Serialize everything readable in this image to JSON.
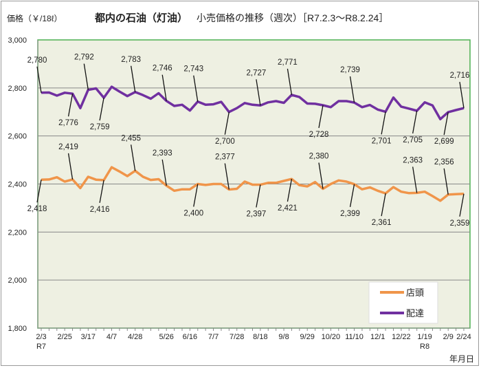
{
  "chart_data": {
    "type": "line",
    "title_bold": "都内の石油（灯油）",
    "title_rest": "小売価格の推移（週次）［R7.2.3～R8.2.24］",
    "ylabel": "価格（￥/18ℓ）",
    "xlabel": "年月日",
    "ylim": [
      1800,
      3000
    ],
    "yticks": [
      "1,800",
      "2,000",
      "2,200",
      "2,400",
      "2,600",
      "2,800",
      "3,000"
    ],
    "grid": true,
    "legend_position": "bottom-right",
    "x": [
      "2/3",
      "2/10",
      "2/17",
      "2/25",
      "3/3",
      "3/10",
      "3/17",
      "3/24",
      "3/31",
      "4/7",
      "4/14",
      "4/21",
      "4/28",
      "5/7",
      "5/12",
      "5/19",
      "5/26",
      "6/2",
      "6/9",
      "6/16",
      "6/23",
      "6/30",
      "7/7",
      "7/14",
      "7/22",
      "7/28",
      "8/4",
      "8/12",
      "8/18",
      "8/25",
      "9/1",
      "9/8",
      "9/16",
      "9/22",
      "9/29",
      "10/6",
      "10/14",
      "10/20",
      "10/27",
      "11/4",
      "11/10",
      "11/17",
      "11/25",
      "12/1",
      "12/8",
      "12/15",
      "12/22",
      "1/6",
      "1/13",
      "1/19",
      "1/26",
      "2/2",
      "2/9",
      "2/16",
      "2/24"
    ],
    "xticks": [
      {
        "label": "2/3",
        "era": "R7"
      },
      {
        "label": "2/25"
      },
      {
        "label": "3/17"
      },
      {
        "label": "4/7"
      },
      {
        "label": "4/28"
      },
      {
        "label": "5/26"
      },
      {
        "label": "6/16"
      },
      {
        "label": "7/7"
      },
      {
        "label": "7/28"
      },
      {
        "label": "8/18"
      },
      {
        "label": "9/8"
      },
      {
        "label": "9/29"
      },
      {
        "label": "10/20"
      },
      {
        "label": "11/10"
      },
      {
        "label": "12/1"
      },
      {
        "label": "12/22"
      },
      {
        "label": "1/19",
        "era": "R8"
      },
      {
        "label": "2/9"
      },
      {
        "label": "2/24"
      }
    ],
    "series": [
      {
        "name": "店頭",
        "color": "#f0954a",
        "values": [
          2418,
          2419,
          2428,
          2410,
          2419,
          2383,
          2430,
          2418,
          2416,
          2470,
          2452,
          2433,
          2455,
          2430,
          2417,
          2420,
          2393,
          2372,
          2378,
          2378,
          2400,
          2396,
          2400,
          2400,
          2377,
          2380,
          2410,
          2397,
          2397,
          2405,
          2405,
          2413,
          2421,
          2395,
          2390,
          2408,
          2380,
          2400,
          2415,
          2410,
          2399,
          2378,
          2386,
          2372,
          2361,
          2387,
          2368,
          2362,
          2363,
          2368,
          2350,
          2330,
          2356,
          2358,
          2359
        ],
        "data_labels": [
          {
            "x": "2/3",
            "text": "2,418",
            "side": "below"
          },
          {
            "x": "3/3",
            "text": "2,419",
            "side": "above"
          },
          {
            "x": "3/31",
            "text": "2,416",
            "side": "below"
          },
          {
            "x": "4/28",
            "text": "2,455",
            "side": "above"
          },
          {
            "x": "5/26",
            "text": "2,393",
            "side": "above"
          },
          {
            "x": "6/23",
            "text": "2,400",
            "side": "below"
          },
          {
            "x": "7/22",
            "text": "2,377",
            "side": "above"
          },
          {
            "x": "8/18",
            "text": "2,397",
            "side": "below"
          },
          {
            "x": "9/16",
            "text": "2,421",
            "side": "below"
          },
          {
            "x": "10/14",
            "text": "2,380",
            "side": "above"
          },
          {
            "x": "11/10",
            "text": "2,399",
            "side": "below"
          },
          {
            "x": "12/8",
            "text": "2,361",
            "side": "below"
          },
          {
            "x": "1/13",
            "text": "2,363",
            "side": "above"
          },
          {
            "x": "2/9",
            "text": "2,356",
            "side": "above"
          },
          {
            "x": "2/24",
            "text": "2,359",
            "side": "below"
          }
        ]
      },
      {
        "name": "配達",
        "color": "#7030a0",
        "values": [
          2780,
          2781,
          2768,
          2780,
          2776,
          2716,
          2792,
          2798,
          2759,
          2805,
          2785,
          2766,
          2783,
          2770,
          2755,
          2778,
          2746,
          2725,
          2730,
          2706,
          2743,
          2730,
          2732,
          2742,
          2700,
          2716,
          2737,
          2730,
          2727,
          2740,
          2745,
          2738,
          2771,
          2762,
          2735,
          2734,
          2728,
          2720,
          2745,
          2745,
          2739,
          2720,
          2729,
          2710,
          2701,
          2760,
          2722,
          2714,
          2705,
          2740,
          2727,
          2670,
          2699,
          2708,
          2716
        ],
        "data_labels": [
          {
            "x": "2/3",
            "text": "2,780",
            "side": "above"
          },
          {
            "x": "3/3",
            "text": "2,776",
            "side": "below"
          },
          {
            "x": "3/17",
            "text": "2,792",
            "side": "above"
          },
          {
            "x": "3/31",
            "text": "2,759",
            "side": "below"
          },
          {
            "x": "4/28",
            "text": "2,783",
            "side": "above"
          },
          {
            "x": "5/26",
            "text": "2,746",
            "side": "above"
          },
          {
            "x": "6/23",
            "text": "2,743",
            "side": "above"
          },
          {
            "x": "7/22",
            "text": "2,700",
            "side": "below"
          },
          {
            "x": "8/18",
            "text": "2,727",
            "side": "above"
          },
          {
            "x": "9/16",
            "text": "2,771",
            "side": "above"
          },
          {
            "x": "10/14",
            "text": "2,728",
            "side": "below"
          },
          {
            "x": "11/10",
            "text": "2,739",
            "side": "above"
          },
          {
            "x": "12/8",
            "text": "2,701",
            "side": "below"
          },
          {
            "x": "1/13",
            "text": "2,705",
            "side": "below"
          },
          {
            "x": "2/9",
            "text": "2,699",
            "side": "below"
          },
          {
            "x": "2/24",
            "text": "2,716",
            "side": "above"
          }
        ]
      }
    ]
  }
}
